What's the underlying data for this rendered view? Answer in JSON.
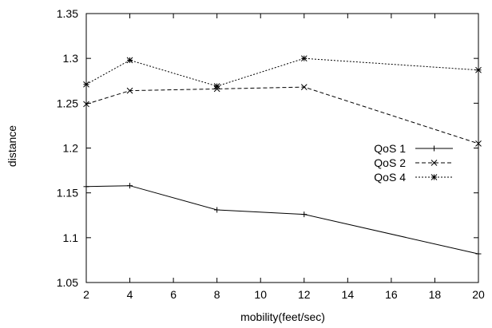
{
  "chart_data": {
    "type": "line",
    "title": "",
    "xlabel": "mobility(feet/sec)",
    "ylabel": "distance",
    "xlim": [
      2,
      20
    ],
    "ylim": [
      1.05,
      1.35
    ],
    "xticks": [
      "2",
      "4",
      "6",
      "8",
      "10",
      "12",
      "14",
      "16",
      "18",
      "20"
    ],
    "yticks": [
      "1.05",
      "1.1",
      "1.15",
      "1.2",
      "1.25",
      "1.3",
      "1.35"
    ],
    "grid": false,
    "legend_position": "right",
    "series": [
      {
        "name": "QoS 1",
        "marker": "plus",
        "dash": "solid",
        "x": [
          2,
          4,
          8,
          12,
          20
        ],
        "y": [
          1.157,
          1.158,
          1.131,
          1.126,
          1.082
        ]
      },
      {
        "name": "QoS 2",
        "marker": "x",
        "dash": "dashed",
        "x": [
          2,
          4,
          8,
          12,
          20
        ],
        "y": [
          1.249,
          1.264,
          1.266,
          1.268,
          1.205
        ]
      },
      {
        "name": "QoS 4",
        "marker": "star",
        "dash": "dotted",
        "x": [
          2,
          4,
          8,
          12,
          20
        ],
        "y": [
          1.271,
          1.298,
          1.269,
          1.3,
          1.287
        ]
      }
    ]
  }
}
